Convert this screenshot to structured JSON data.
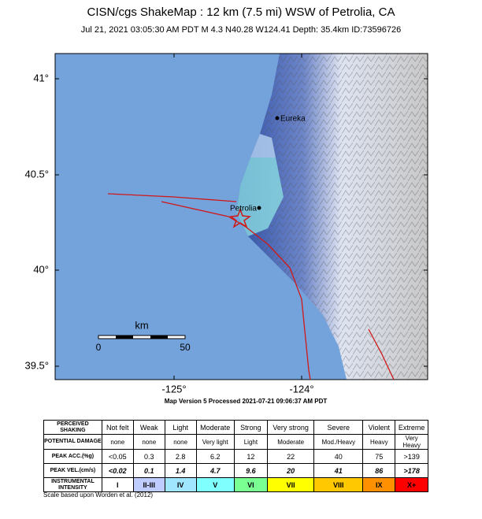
{
  "header": {
    "title": "CISN/cgs ShakeMap : 12 km (7.5 mi) WSW of Petrolia, CA",
    "subtitle": "Jul 21, 2021 03:05:30 AM PDT   M 4.3   N40.28 W124.41   Depth: 35.4km   ID:73596726"
  },
  "map": {
    "lat_labels": [
      "41°",
      "40.5°",
      "40°",
      "39.5°"
    ],
    "lon_labels": [
      "-125°",
      "-124°"
    ],
    "places": [
      "Eureka",
      "Petrolia"
    ],
    "scale": {
      "unit": "km",
      "labels": [
        "0",
        "50"
      ]
    }
  },
  "version": "Map Version 5 Processed 2021-07-21 09:06:37 AM PDT",
  "table": {
    "row_headers": [
      "PERCEIVED SHAKING",
      "POTENTIAL DAMAGE",
      "PEAK ACC.(%g)",
      "PEAK VEL.(cm/s)",
      "INSTRUMENTAL INTENSITY"
    ],
    "rows": [
      [
        "Not felt",
        "Weak",
        "Light",
        "Moderate",
        "Strong",
        "Very strong",
        "Severe",
        "Violent",
        "Extreme"
      ],
      [
        "none",
        "none",
        "none",
        "Very light",
        "Light",
        "Moderate",
        "Mod./Heavy",
        "Heavy",
        "Very Heavy"
      ],
      [
        "<0.05",
        "0.3",
        "2.8",
        "6.2",
        "12",
        "22",
        "40",
        "75",
        ">139"
      ],
      [
        "<0.02",
        "0.1",
        "1.4",
        "4.7",
        "9.6",
        "20",
        "41",
        "86",
        ">178"
      ],
      [
        "I",
        "II-III",
        "IV",
        "V",
        "VI",
        "VII",
        "VIII",
        "IX",
        "X+"
      ]
    ],
    "intensity_colors": [
      "#ffffff",
      "#bfccff",
      "#a0e6ff",
      "#80ffff",
      "#7aff93",
      "#ffff00",
      "#ffc800",
      "#ff9100",
      "#ff0000"
    ]
  },
  "footnote": "Scale based upon Worden et al. (2012)"
}
